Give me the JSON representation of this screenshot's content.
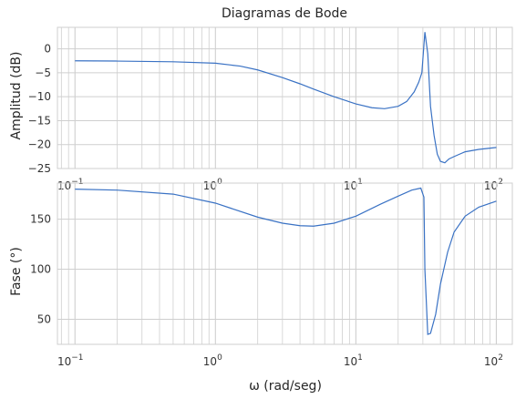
{
  "figure": {
    "title": "Diagramas de Bode",
    "line_color": "#3a72c4",
    "grid_color": "#cfcfcf"
  },
  "chart_data": [
    {
      "type": "line",
      "title": "Diagramas de Bode",
      "xlabel": "",
      "ylabel": "Amplitud (dB)",
      "xscale": "log",
      "xlim": [
        0.075,
        130
      ],
      "ylim": [
        -25,
        4.5
      ],
      "yticks": [
        0,
        -5,
        -10,
        -15,
        -20,
        -25
      ],
      "ytick_labels": [
        "0",
        "−5",
        "−10",
        "−15",
        "−20",
        "−25"
      ],
      "xticks": [
        0.1,
        1,
        10,
        100
      ],
      "xtick_labels": [
        [
          "10",
          "−1"
        ],
        [
          "10",
          "0"
        ],
        [
          "10",
          "1"
        ],
        [
          "10",
          "2"
        ]
      ],
      "grid": true,
      "x": [
        0.1,
        0.2,
        0.5,
        1.0,
        1.5,
        2.0,
        3.0,
        4.0,
        5.0,
        7.0,
        10.0,
        13.0,
        16.0,
        20.0,
        23.0,
        26.0,
        28.0,
        29.5,
        31.0,
        32.5,
        34.0,
        36.0,
        38.0,
        40.0,
        43.0,
        46.0,
        50.0,
        60.0,
        75.0,
        100.0
      ],
      "y": [
        -2.5,
        -2.55,
        -2.7,
        -3.0,
        -3.6,
        -4.4,
        -6.0,
        -7.3,
        -8.4,
        -10.0,
        -11.5,
        -12.3,
        -12.5,
        -12.0,
        -11.0,
        -9.0,
        -7.0,
        -5.0,
        3.5,
        -1.0,
        -12.0,
        -18.0,
        -22.0,
        -23.5,
        -23.8,
        -23.0,
        -22.5,
        -21.5,
        -21.0,
        -20.6
      ]
    },
    {
      "type": "line",
      "title": "",
      "xlabel": "ω (rad/seg)",
      "ylabel": "Fase (°)",
      "xscale": "log",
      "xlim": [
        0.075,
        130
      ],
      "ylim": [
        25,
        186
      ],
      "yticks": [
        50,
        100,
        150
      ],
      "ytick_labels": [
        "50",
        "100",
        "150"
      ],
      "xticks": [
        0.1,
        1,
        10,
        100
      ],
      "xtick_labels": [
        [
          "10",
          "−1"
        ],
        [
          "10",
          "0"
        ],
        [
          "10",
          "1"
        ],
        [
          "10",
          "2"
        ]
      ],
      "grid": true,
      "x": [
        0.1,
        0.2,
        0.5,
        1.0,
        2.0,
        3.0,
        4.0,
        5.0,
        7.0,
        10.0,
        15.0,
        20.0,
        25.0,
        29.0,
        30.5,
        31.0,
        32.5,
        34.0,
        37.0,
        40.0,
        45.0,
        50.0,
        60.0,
        75.0,
        100.0
      ],
      "y": [
        180,
        179,
        175,
        166,
        152,
        146,
        143.5,
        143,
        146,
        153,
        165,
        173,
        179,
        181,
        172,
        100,
        35,
        36,
        55,
        85,
        117,
        137,
        153,
        162,
        168
      ]
    }
  ]
}
